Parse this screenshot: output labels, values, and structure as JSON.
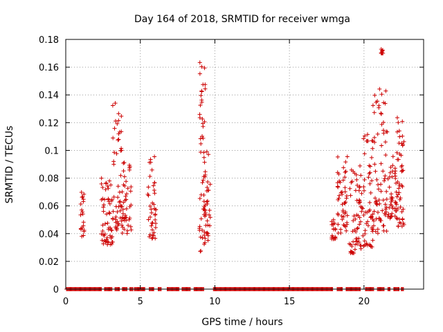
{
  "chart_data": {
    "type": "scatter",
    "title": "Day 164 of 2018, SRMTID for receiver wmga",
    "xlabel": "GPS time / hours",
    "ylabel": "SRMTID / TECUs",
    "xlim": [
      0,
      24
    ],
    "ylim": [
      0,
      0.18
    ],
    "xticks": [
      0,
      5,
      10,
      15,
      20
    ],
    "xtick_labels": [
      "0",
      "5",
      "10",
      "15",
      "20"
    ],
    "yticks": [
      0,
      0.02,
      0.04,
      0.06,
      0.08,
      0.1,
      0.12,
      0.14,
      0.16,
      0.18
    ],
    "ytick_labels": [
      "0",
      "0.02",
      "0.04",
      "0.06",
      "0.08",
      "0.1",
      "0.12",
      "0.14",
      "0.16",
      "0.18"
    ],
    "grid": true,
    "marker": "+",
    "color": "#cc0000",
    "clusters": [
      {
        "x": [
          1.0,
          1.25
        ],
        "y": [
          0.038,
          0.07
        ]
      },
      {
        "x": [
          2.3,
          3.15
        ],
        "y": [
          0.032,
          0.08
        ]
      },
      {
        "x": [
          3.15,
          3.75
        ],
        "y": [
          0.04,
          0.137
        ]
      },
      {
        "x": [
          3.75,
          4.4
        ],
        "y": [
          0.04,
          0.098
        ]
      },
      {
        "x": [
          5.5,
          6.05
        ],
        "y": [
          0.036,
          0.096
        ]
      },
      {
        "x": [
          8.95,
          9.35
        ],
        "y": [
          0.026,
          0.17
        ]
      },
      {
        "x": [
          9.25,
          9.7
        ],
        "y": [
          0.035,
          0.1
        ]
      },
      {
        "x": [
          17.8,
          18.1
        ],
        "y": [
          0.036,
          0.05
        ]
      },
      {
        "x": [
          18.2,
          18.9
        ],
        "y": [
          0.04,
          0.096
        ]
      },
      {
        "x": [
          19.0,
          19.9
        ],
        "y": [
          0.026,
          0.09
        ]
      },
      {
        "x": [
          19.9,
          20.6
        ],
        "y": [
          0.03,
          0.113
        ]
      },
      {
        "x": [
          20.6,
          21.6
        ],
        "y": [
          0.04,
          0.15
        ]
      },
      {
        "x": [
          21.15,
          21.3
        ],
        "y": [
          0.17,
          0.173
        ]
      },
      {
        "x": [
          21.6,
          22.3
        ],
        "y": [
          0.05,
          0.096
        ]
      },
      {
        "x": [
          22.2,
          22.7
        ],
        "y": [
          0.045,
          0.125
        ]
      }
    ],
    "zero_ranges": [
      [
        0.05,
        2.4
      ],
      [
        2.6,
        3.1
      ],
      [
        3.3,
        3.6
      ],
      [
        3.8,
        4.1
      ],
      [
        4.3,
        4.5
      ],
      [
        4.6,
        5.3
      ],
      [
        5.6,
        5.9
      ],
      [
        6.2,
        6.4
      ],
      [
        6.8,
        7.6
      ],
      [
        7.8,
        8.4
      ],
      [
        8.6,
        9.3
      ],
      [
        9.9,
        17.95
      ],
      [
        18.2,
        18.6
      ],
      [
        18.8,
        19.8
      ],
      [
        20.1,
        20.7
      ],
      [
        20.9,
        21.4
      ],
      [
        21.6,
        21.8
      ],
      [
        22.0,
        22.4
      ],
      [
        22.5,
        22.7
      ]
    ]
  }
}
